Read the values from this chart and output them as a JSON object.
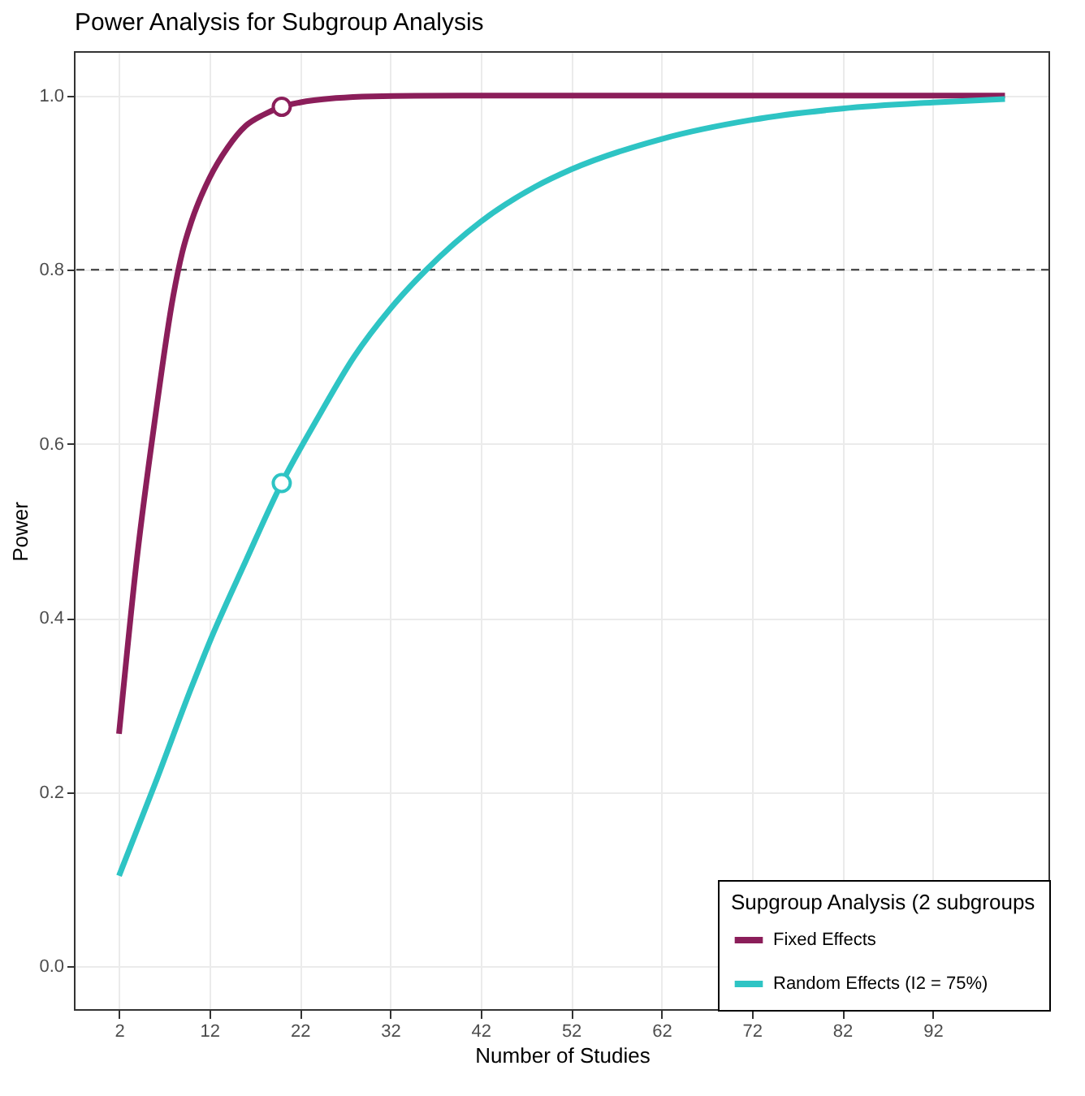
{
  "chart_data": {
    "type": "line",
    "title": "Power Analysis for Subgroup Analysis",
    "xlabel": "Number of Studies",
    "ylabel": "Power",
    "legend_title": "Supgroup Analysis (2 subgroups",
    "legend": "bottom right",
    "grid": true,
    "line_style": "solid",
    "marker": "none",
    "xlim": [
      -2.9,
      104.9
    ],
    "xticks": [
      2,
      12,
      22,
      32,
      42,
      52,
      62,
      72,
      82,
      92
    ],
    "ylim": [
      -0.05,
      1.05
    ],
    "yticks": [
      {
        "value": 0,
        "label": "0.0"
      },
      0.2,
      0.4,
      0.6,
      0.8,
      {
        "value": 1,
        "label": "1.0"
      }
    ],
    "ref_lines": [
      {
        "axis": "y",
        "value": 0.8,
        "line_style": "dashed",
        "color": "#333333"
      }
    ],
    "series": [
      {
        "name": "Fixed Effects",
        "color": "#8b1e5a",
        "x": [
          2,
          4,
          6,
          8,
          9,
          10,
          12,
          14,
          16,
          18,
          20,
          22,
          26,
          30,
          40,
          50,
          60,
          70,
          80,
          90,
          100
        ],
        "values": [
          0.267,
          0.47,
          0.63,
          0.77,
          0.82,
          0.855,
          0.905,
          0.94,
          0.965,
          0.978,
          0.987,
          0.992,
          0.997,
          0.999,
          1,
          1,
          1,
          1,
          1,
          1,
          1
        ]
      },
      {
        "name": "Random Effects (I2 = 75%)",
        "color": "#2ec4c4",
        "x": [
          2,
          6,
          10,
          12,
          16,
          20,
          24,
          28,
          32,
          36,
          42,
          48,
          52,
          62,
          72,
          82,
          92,
          100
        ],
        "values": [
          0.104,
          0.21,
          0.32,
          0.372,
          0.465,
          0.555,
          0.63,
          0.7,
          0.755,
          0.8,
          0.855,
          0.895,
          0.915,
          0.95,
          0.972,
          0.985,
          0.992,
          0.996
        ]
      },
      {
        "type": "scatter",
        "marker": "circle",
        "color": "#8b1e5a",
        "x": [
          20
        ],
        "values": [
          0.987
        ]
      },
      {
        "type": "scatter",
        "marker": "circle",
        "color": "#2ec4c4",
        "x": [
          20
        ],
        "values": [
          0.555
        ]
      }
    ]
  }
}
